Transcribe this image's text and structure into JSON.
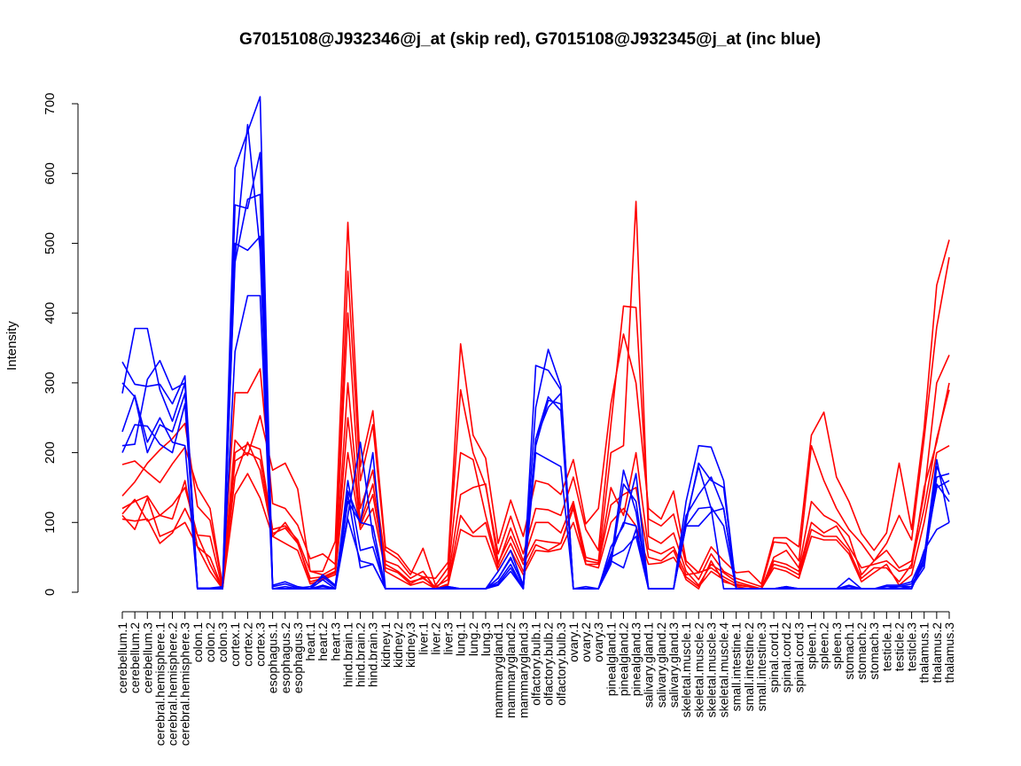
{
  "chart_data": {
    "type": "line",
    "title": "G7015108@J932346@j_at (skip red), G7015108@J932345@j_at (inc blue)",
    "xlabel": "",
    "ylabel": "Intensity",
    "ylim": [
      0,
      700
    ],
    "yticks": [
      0,
      100,
      200,
      300,
      400,
      500,
      600,
      700
    ],
    "grid": false,
    "legend": "none",
    "colors": {
      "red": "#ff0000",
      "blue": "#0000ff"
    },
    "categories": [
      "cerebellum.1",
      "cerebellum.2",
      "cerebellum.3",
      "cerebral.hemisphere.1",
      "cerebral.hemisphere.2",
      "cerebral.hemisphere.3",
      "colon.1",
      "colon.2",
      "colon.3",
      "cortex.1",
      "cortex.2",
      "cortex.3",
      "esophagus.1",
      "esophagus.2",
      "esophagus.3",
      "heart.1",
      "heart.2",
      "heart.3",
      "hind.brain.1",
      "hind.brain.2",
      "hind.brain.3",
      "kidney.1",
      "kidney.2",
      "kidney.3",
      "liver.1",
      "liver.2",
      "liver.3",
      "lung.1",
      "lung.2",
      "lung.3",
      "mammarygland.1",
      "mammarygland.2",
      "mammarygland.3",
      "olfactory.bulb.1",
      "olfactory.bulb.2",
      "olfactory.bulb.3",
      "ovary.1",
      "ovary.2",
      "ovary.3",
      "pinealgland.1",
      "pinealgland.2",
      "pinealgland.3",
      "salivary.gland.1",
      "salivary.gland.2",
      "salivary.gland.3",
      "skeletal.muscle.1",
      "skeletal.muscle.2",
      "skeletal.muscle.3",
      "skeletal.muscle.4",
      "small.intestine.1",
      "small.intestine.2",
      "small.intestine.3",
      "spinal.cord.1",
      "spinal.cord.2",
      "spinal.cord.3",
      "spleen.1",
      "spleen.2",
      "spleen.3",
      "stomach.1",
      "stomach.2",
      "stomach.3",
      "testicle.1",
      "testicle.2",
      "testicle.3",
      "thalamus.1",
      "thalamus.2",
      "thalamus.3"
    ],
    "series": [
      {
        "color": "red",
        "values": [
          183,
          188,
          172,
          157,
          184,
          208,
          150,
          120,
          10,
          218,
          196,
          253,
          175,
          185,
          148,
          30,
          30,
          73,
          530,
          180,
          260,
          65,
          54,
          30,
          22,
          20,
          43,
          356,
          225,
          192,
          70,
          132,
          80,
          160,
          155,
          140,
          190,
          98,
          120,
          270,
          370,
          300,
          120,
          105,
          145,
          45,
          28,
          65,
          45,
          28,
          30,
          12,
          78,
          78,
          65,
          225,
          258,
          165,
          130,
          84,
          60,
          85,
          185,
          90,
          235,
          440,
          505
        ]
      },
      {
        "color": "red",
        "values": [
          138,
          158,
          185,
          204,
          220,
          242,
          123,
          103,
          10,
          286,
          286,
          320,
          127,
          120,
          96,
          48,
          55,
          40,
          460,
          160,
          240,
          60,
          48,
          25,
          63,
          10,
          35,
          290,
          200,
          152,
          55,
          109,
          55,
          120,
          118,
          110,
          165,
          90,
          60,
          240,
          410,
          408,
          105,
          95,
          112,
          40,
          18,
          55,
          30,
          20,
          14,
          8,
          72,
          70,
          45,
          210,
          160,
          120,
          90,
          70,
          45,
          70,
          110,
          75,
          220,
          380,
          480
        ]
      },
      {
        "color": "red",
        "values": [
          120,
          130,
          138,
          110,
          125,
          150,
          82,
          80,
          5,
          200,
          212,
          205,
          90,
          95,
          75,
          30,
          25,
          35,
          400,
          120,
          175,
          45,
          38,
          20,
          30,
          5,
          25,
          200,
          190,
          110,
          40,
          92,
          45,
          100,
          100,
          85,
          130,
          50,
          45,
          200,
          210,
          560,
          80,
          70,
          85,
          30,
          10,
          40,
          28,
          15,
          10,
          5,
          50,
          60,
          35,
          130,
          110,
          100,
          80,
          25,
          45,
          60,
          35,
          45,
          140,
          300,
          340
        ]
      },
      {
        "color": "red",
        "values": [
          112,
          133,
          102,
          110,
          105,
          160,
          65,
          50,
          5,
          188,
          200,
          190,
          84,
          92,
          70,
          20,
          22,
          30,
          300,
          100,
          155,
          40,
          30,
          15,
          20,
          8,
          18,
          140,
          150,
          155,
          42,
          80,
          40,
          75,
          72,
          70,
          125,
          45,
          42,
          150,
          110,
          200,
          62,
          55,
          65,
          25,
          28,
          35,
          22,
          12,
          8,
          5,
          45,
          40,
          30,
          100,
          85,
          95,
          65,
          35,
          40,
          45,
          30,
          35,
          150,
          215,
          300
        ]
      },
      {
        "color": "red",
        "values": [
          105,
          102,
          105,
          70,
          85,
          120,
          82,
          40,
          5,
          165,
          215,
          175,
          80,
          100,
          72,
          15,
          20,
          28,
          250,
          95,
          140,
          35,
          28,
          12,
          22,
          5,
          12,
          110,
          85,
          100,
          35,
          70,
          30,
          68,
          60,
          70,
          120,
          40,
          40,
          125,
          140,
          150,
          50,
          45,
          60,
          18,
          5,
          45,
          15,
          10,
          8,
          5,
          40,
          35,
          25,
          90,
          80,
          80,
          60,
          20,
          35,
          35,
          15,
          40,
          120,
          220,
          290
        ]
      },
      {
        "color": "red",
        "values": [
          110,
          90,
          135,
          80,
          88,
          100,
          65,
          30,
          5,
          140,
          170,
          135,
          80,
          70,
          60,
          12,
          18,
          25,
          200,
          90,
          120,
          30,
          20,
          10,
          15,
          5,
          10,
          90,
          80,
          80,
          30,
          60,
          25,
          60,
          58,
          62,
          100,
          40,
          35,
          100,
          120,
          95,
          40,
          42,
          50,
          22,
          8,
          30,
          18,
          8,
          5,
          5,
          35,
          30,
          20,
          80,
          75,
          75,
          55,
          15,
          28,
          40,
          10,
          25,
          100,
          200,
          210
        ]
      },
      {
        "color": "blue",
        "values": [
          330,
          298,
          295,
          298,
          270,
          310,
          6,
          6,
          8,
          473,
          563,
          570,
          10,
          15,
          8,
          5,
          25,
          10,
          145,
          100,
          200,
          5,
          5,
          5,
          5,
          5,
          8,
          5,
          5,
          5,
          20,
          50,
          8,
          325,
          318,
          290,
          5,
          5,
          5,
          45,
          175,
          115,
          5,
          5,
          5,
          130,
          210,
          208,
          160,
          5,
          5,
          5,
          5,
          8,
          5,
          5,
          5,
          5,
          8,
          5,
          5,
          10,
          10,
          15,
          55,
          150,
          160
        ]
      },
      {
        "color": "blue",
        "values": [
          285,
          378,
          378,
          290,
          245,
          300,
          6,
          5,
          6,
          480,
          670,
          490,
          8,
          12,
          6,
          8,
          22,
          8,
          110,
          215,
          80,
          5,
          5,
          5,
          5,
          5,
          8,
          5,
          5,
          5,
          30,
          60,
          10,
          265,
          348,
          295,
          5,
          8,
          5,
          40,
          155,
          130,
          5,
          5,
          5,
          105,
          180,
          120,
          5,
          5,
          5,
          5,
          5,
          8,
          5,
          5,
          5,
          5,
          20,
          5,
          5,
          8,
          8,
          12,
          40,
          165,
          170
        ]
      },
      {
        "color": "blue",
        "values": [
          230,
          282,
          215,
          250,
          215,
          210,
          5,
          5,
          5,
          608,
          660,
          710,
          5,
          8,
          5,
          5,
          18,
          5,
          160,
          60,
          65,
          5,
          5,
          5,
          5,
          5,
          6,
          5,
          5,
          5,
          20,
          48,
          10,
          220,
          265,
          285,
          5,
          5,
          5,
          65,
          95,
          170,
          5,
          5,
          5,
          95,
          120,
          122,
          95,
          5,
          5,
          5,
          5,
          6,
          5,
          5,
          5,
          5,
          10,
          5,
          5,
          5,
          8,
          8,
          35,
          180,
          140
        ]
      },
      {
        "color": "blue",
        "values": [
          210,
          212,
          305,
          332,
          290,
          300,
          5,
          5,
          6,
          555,
          550,
          630,
          5,
          5,
          5,
          5,
          10,
          5,
          140,
          35,
          40,
          5,
          5,
          5,
          5,
          5,
          5,
          5,
          5,
          5,
          15,
          40,
          5,
          220,
          280,
          260,
          5,
          5,
          5,
          55,
          100,
          95,
          5,
          5,
          5,
          100,
          185,
          160,
          150,
          5,
          5,
          5,
          5,
          5,
          5,
          5,
          5,
          5,
          5,
          5,
          5,
          5,
          5,
          8,
          50,
          190,
          100
        ]
      },
      {
        "color": "blue",
        "values": [
          200,
          240,
          238,
          212,
          200,
          270,
          5,
          5,
          5,
          345,
          425,
          425,
          5,
          5,
          5,
          5,
          8,
          5,
          105,
          45,
          40,
          5,
          5,
          5,
          5,
          5,
          5,
          5,
          5,
          5,
          10,
          30,
          5,
          200,
          190,
          180,
          5,
          5,
          5,
          45,
          35,
          90,
          5,
          5,
          5,
          95,
          95,
          115,
          120,
          5,
          5,
          5,
          5,
          5,
          5,
          5,
          5,
          5,
          5,
          5,
          5,
          5,
          5,
          5,
          60,
          90,
          100
        ]
      },
      {
        "color": "blue",
        "values": [
          300,
          280,
          200,
          240,
          230,
          285,
          5,
          5,
          5,
          500,
          490,
          510,
          5,
          5,
          5,
          5,
          5,
          5,
          130,
          100,
          95,
          5,
          5,
          5,
          5,
          5,
          5,
          5,
          5,
          5,
          12,
          35,
          5,
          210,
          275,
          270,
          5,
          5,
          5,
          50,
          60,
          80,
          5,
          5,
          5,
          110,
          140,
          165,
          120,
          5,
          5,
          5,
          5,
          5,
          5,
          5,
          5,
          5,
          5,
          5,
          5,
          5,
          5,
          5,
          45,
          155,
          130
        ]
      }
    ]
  }
}
